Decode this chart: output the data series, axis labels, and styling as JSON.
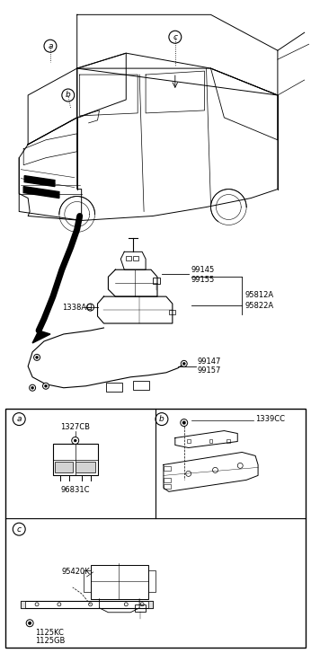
{
  "bg_color": "#ffffff",
  "border_color": "#000000",
  "text_color": "#000000",
  "fig_width": 3.46,
  "fig_height": 7.27,
  "dpi": 100,
  "labels": {
    "circle_a_top": "a",
    "circle_b_top": "b",
    "circle_c_top": "c",
    "label_1338AC": "1338AC",
    "label_99145": "99145",
    "label_99155": "99155",
    "label_95812A": "95812A",
    "label_95822A": "95822A",
    "label_99147": "99147",
    "label_99157": "99157",
    "circle_a_box": "a",
    "circle_b_box": "b",
    "circle_c_box": "c",
    "label_1327CB": "1327CB",
    "label_96831C": "96831C",
    "label_1339CC": "1339CC",
    "label_95420K": "95420K",
    "label_1125KC": "1125KC",
    "label_1125GB": "1125GB"
  }
}
